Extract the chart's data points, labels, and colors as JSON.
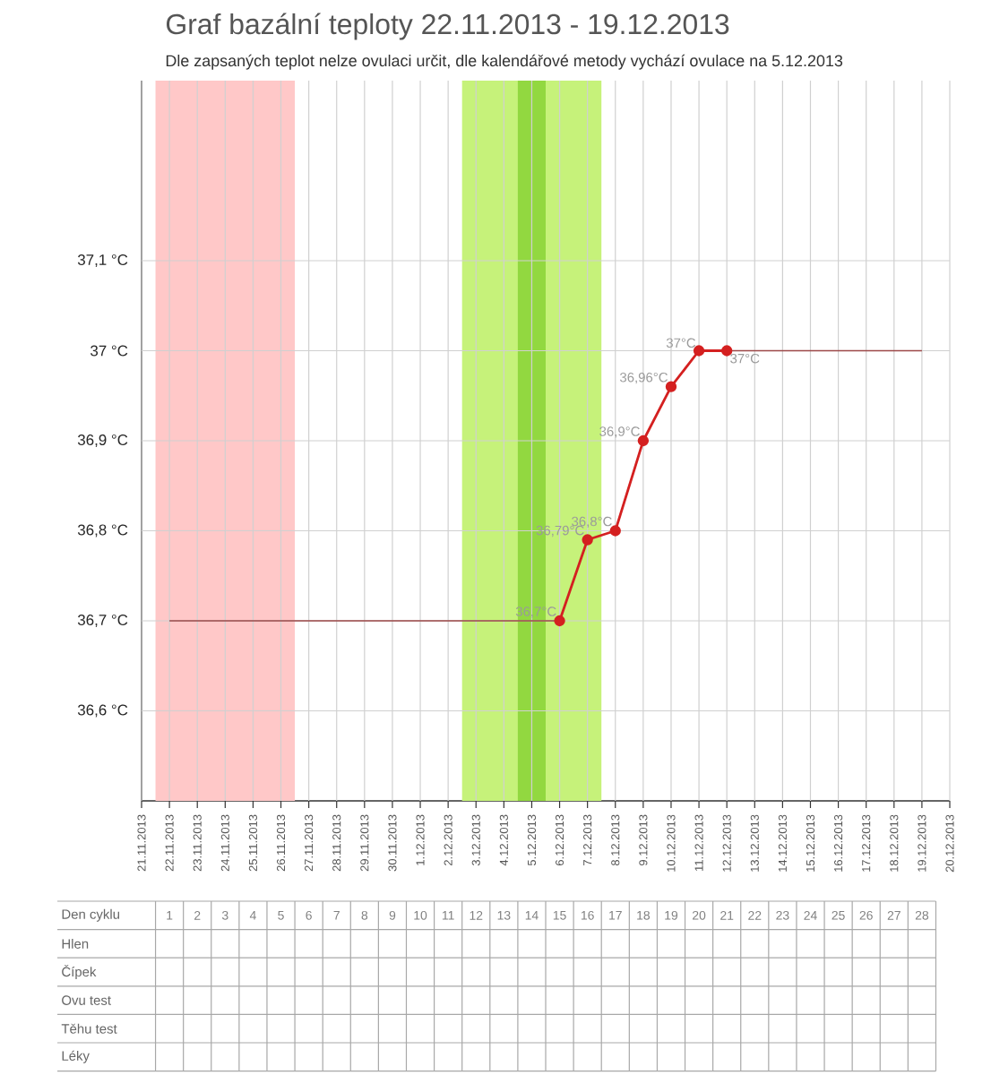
{
  "chart_data": {
    "type": "line",
    "title": "Graf bazální teploty 22.11.2013 - 19.12.2013",
    "subtitle": "Dle zapsaných teplot nelze ovulaci určit, dle kalendářové metody vychází ovulace na 5.12.2013",
    "xlim": [
      "2013-11-21",
      "2013-12-20"
    ],
    "xticks": [
      {
        "value": "2013-11-21",
        "label": "21.11.2013"
      },
      {
        "value": "2013-11-22",
        "label": "22.11.2013"
      },
      {
        "value": "2013-11-23",
        "label": "23.11.2013"
      },
      {
        "value": "2013-11-24",
        "label": "24.11.2013"
      },
      {
        "value": "2013-11-25",
        "label": "25.11.2013"
      },
      {
        "value": "2013-11-26",
        "label": "26.11.2013"
      },
      {
        "value": "2013-11-27",
        "label": "27.11.2013"
      },
      {
        "value": "2013-11-28",
        "label": "28.11.2013"
      },
      {
        "value": "2013-11-29",
        "label": "29.11.2013"
      },
      {
        "value": "2013-11-30",
        "label": "30.11.2013"
      },
      {
        "value": "2013-12-01",
        "label": "1.12.2013"
      },
      {
        "value": "2013-12-02",
        "label": "2.12.2013"
      },
      {
        "value": "2013-12-03",
        "label": "3.12.2013"
      },
      {
        "value": "2013-12-04",
        "label": "4.12.2013"
      },
      {
        "value": "2013-12-05",
        "label": "5.12.2013"
      },
      {
        "value": "2013-12-06",
        "label": "6.12.2013"
      },
      {
        "value": "2013-12-07",
        "label": "7.12.2013"
      },
      {
        "value": "2013-12-08",
        "label": "8.12.2013"
      },
      {
        "value": "2013-12-09",
        "label": "9.12.2013"
      },
      {
        "value": "2013-12-10",
        "label": "10.12.2013"
      },
      {
        "value": "2013-12-11",
        "label": "11.12.2013"
      },
      {
        "value": "2013-12-12",
        "label": "12.12.2013"
      },
      {
        "value": "2013-12-13",
        "label": "13.12.2013"
      },
      {
        "value": "2013-12-14",
        "label": "14.12.2013"
      },
      {
        "value": "2013-12-15",
        "label": "15.12.2013"
      },
      {
        "value": "2013-12-16",
        "label": "16.12.2013"
      },
      {
        "value": "2013-12-17",
        "label": "17.12.2013"
      },
      {
        "value": "2013-12-18",
        "label": "18.12.2013"
      },
      {
        "value": "2013-12-19",
        "label": "19.12.2013"
      },
      {
        "value": "2013-12-20",
        "label": "20.12.2013"
      }
    ],
    "ylim": [
      36.5,
      37.3
    ],
    "yticks": [
      {
        "value": 36.6,
        "label": "36,6 °C"
      },
      {
        "value": 36.7,
        "label": "36,7 °C"
      },
      {
        "value": 36.8,
        "label": "36,8 °C"
      },
      {
        "value": 36.9,
        "label": "36,9 °C"
      },
      {
        "value": 37,
        "label": "37 °C"
      },
      {
        "value": 37.1,
        "label": "37,1 °C"
      }
    ],
    "grid": true,
    "bands": [
      {
        "axis": "x",
        "from": "2013-11-21T12:00",
        "to": "2013-11-26T12:00",
        "color": "#ffc8c8"
      },
      {
        "axis": "x",
        "from": "2013-12-02T12:00",
        "to": "2013-12-07T12:00",
        "color": "#c6f27a"
      },
      {
        "axis": "x",
        "from": "2013-12-04T12:00",
        "to": "2013-12-05T12:00",
        "color": "#92d840"
      }
    ],
    "series": [
      {
        "color": "#9c4848",
        "marker": "none",
        "x": [
          "2013-11-22",
          "2013-12-06",
          "2013-12-07",
          "2013-12-12",
          "2013-12-19"
        ],
        "values": [
          36.7,
          36.7,
          null,
          37,
          37
        ]
      },
      {
        "color": "#d42020",
        "marker": "circle",
        "x": [
          "2013-12-06",
          "2013-12-07",
          "2013-12-08",
          "2013-12-09",
          "2013-12-10",
          "2013-12-11",
          "2013-12-12"
        ],
        "values": [
          36.7,
          36.79,
          36.8,
          36.9,
          36.96,
          37,
          37
        ],
        "value_labels": [
          "36,7°C",
          "36,79°C",
          "36,8°C",
          "36,9°C",
          "36,96°C",
          "37°C",
          "37°C"
        ]
      }
    ],
    "annotations": [
      "Den cyklu",
      "Hlen",
      "Čípek",
      "Ovu test",
      "Těhu test",
      "Léky",
      "1",
      "2",
      "3",
      "4",
      "5",
      "6",
      "7",
      "8",
      "9",
      "10",
      "11",
      "12",
      "13",
      "14",
      "15",
      "16",
      "17",
      "18",
      "19",
      "20",
      "21",
      "22",
      "23",
      "24",
      "25",
      "26",
      "27",
      "28"
    ]
  }
}
